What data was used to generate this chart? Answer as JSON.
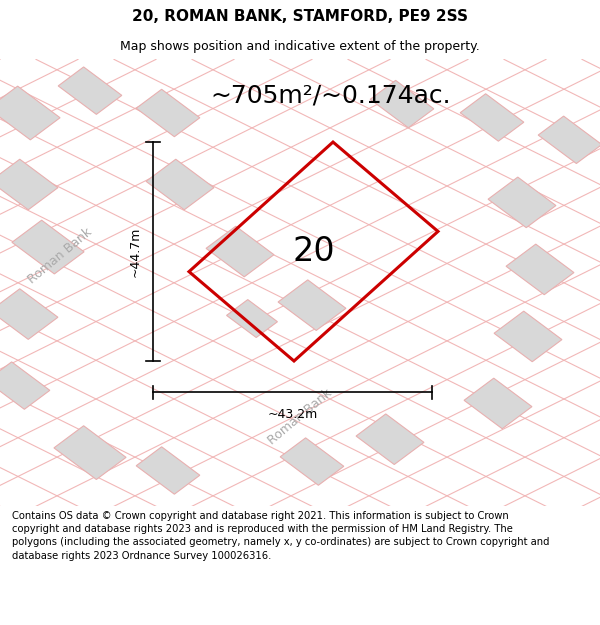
{
  "title": "20, ROMAN BANK, STAMFORD, PE9 2SS",
  "subtitle": "Map shows position and indicative extent of the property.",
  "area_text": "~705m²/~0.174ac.",
  "plot_number": "20",
  "dim_height": "~44.7m",
  "dim_width": "~43.2m",
  "road_label": "Roman Bank",
  "footer": "Contains OS data © Crown copyright and database right 2021. This information is subject to Crown copyright and database rights 2023 and is reproduced with the permission of HM Land Registry. The polygons (including the associated geometry, namely x, y co-ordinates) are subject to Crown copyright and database rights 2023 Ordnance Survey 100026316.",
  "bg_color": "#f5f5f5",
  "map_bg": "#f0f0f0",
  "plot_color": "#cc0000",
  "building_fill": "#d8d8d8",
  "building_edge": "#e8b0b0",
  "road_line_color": "#f0b0b0",
  "title_fontsize": 11,
  "subtitle_fontsize": 9,
  "area_fontsize": 18,
  "plot_num_fontsize": 24,
  "road_label_fontsize": 9,
  "footer_fontsize": 7.2
}
